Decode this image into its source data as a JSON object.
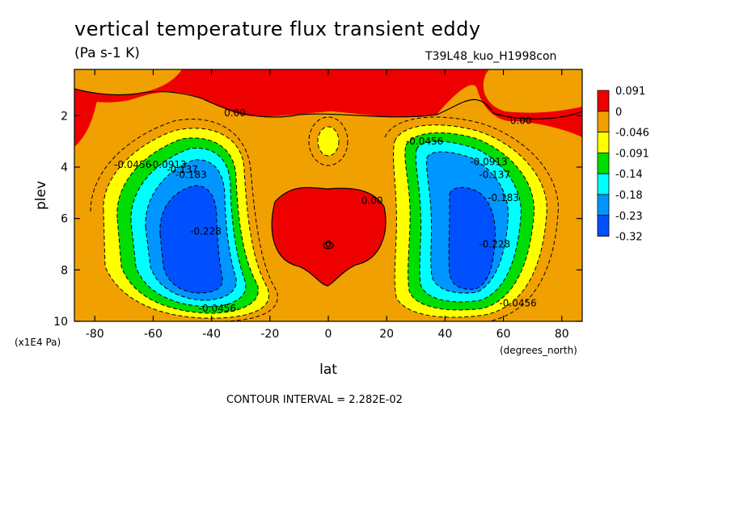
{
  "header": {
    "title": "vertical temperature flux transient eddy",
    "units": "(Pa s-1 K)",
    "run_id": "T39L48_kuo_H1998con"
  },
  "footer": {
    "contour_interval": "CONTOUR INTERVAL = 2.282E-02"
  },
  "chart_data": {
    "type": "heatmap",
    "xlabel": "lat",
    "x_units": "(degrees_north)",
    "ylabel": "plev",
    "y_units": "(x1E4 Pa)",
    "xlim": [
      -87,
      87
    ],
    "ylim": [
      10,
      0.2
    ],
    "x_ticks": [
      -80,
      -60,
      -40,
      -20,
      0,
      20,
      40,
      60,
      80
    ],
    "y_ticks": [
      2,
      4,
      6,
      8,
      10
    ],
    "colorbar": {
      "colors": [
        "#ee0000",
        "#f0a000",
        "#ffff00",
        "#00dd00",
        "#00ffff",
        "#0096ff",
        "#0050ff"
      ],
      "labels": [
        "0.091",
        "0",
        "-0.046",
        "-0.091",
        "-0.14",
        "-0.18",
        "-0.23",
        "-0.32"
      ]
    },
    "contour_labels": [
      {
        "text": "0.00",
        "x": -32,
        "y": 1.9
      },
      {
        "text": "0.00",
        "x": 66,
        "y": 2.2
      },
      {
        "text": "0.00",
        "x": 15,
        "y": 5.3
      },
      {
        "text": "0",
        "x": 0,
        "y": 7.0
      },
      {
        "text": "-0.0456",
        "x": -67,
        "y": 3.9
      },
      {
        "text": "-0.0913",
        "x": -55,
        "y": 3.9
      },
      {
        "text": "-0.137",
        "x": -50,
        "y": 4.1
      },
      {
        "text": "-0.183",
        "x": -47,
        "y": 4.3
      },
      {
        "text": "-0.228",
        "x": -42,
        "y": 6.5
      },
      {
        "text": "-0.0456",
        "x": -38,
        "y": 9.5
      },
      {
        "text": "-0.0456",
        "x": 33,
        "y": 3.0
      },
      {
        "text": "-0.0913",
        "x": 55,
        "y": 3.8
      },
      {
        "text": "-0.137",
        "x": 57,
        "y": 4.3
      },
      {
        "text": "-0.183",
        "x": 60,
        "y": 5.2
      },
      {
        "text": "-0.228",
        "x": 57,
        "y": 7.0
      },
      {
        "text": "-0.0456",
        "x": 65,
        "y": 9.3
      }
    ]
  }
}
